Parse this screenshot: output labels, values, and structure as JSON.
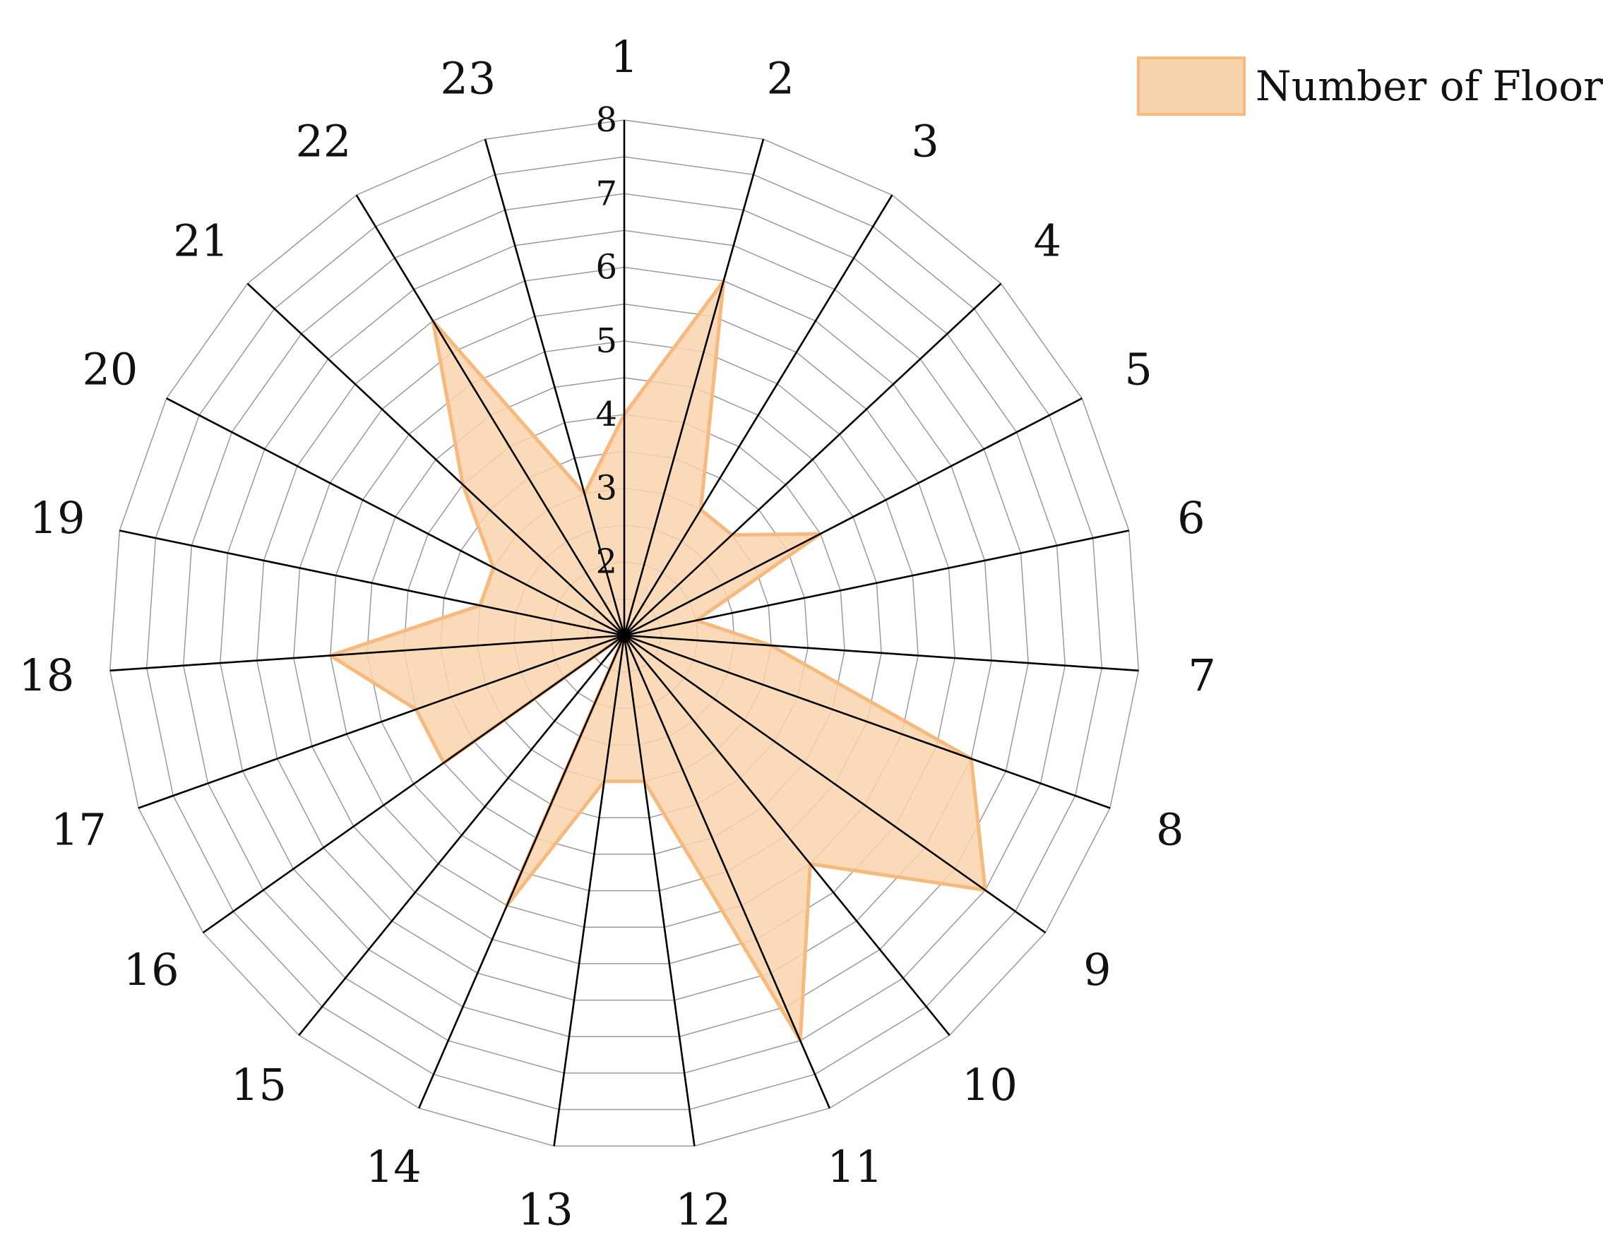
{
  "chart_data": {
    "type": "radar",
    "categories": [
      "1",
      "2",
      "3",
      "4",
      "5",
      "6",
      "7",
      "8",
      "9",
      "10",
      "11",
      "12",
      "13",
      "14",
      "15",
      "16",
      "17",
      "18",
      "19",
      "20",
      "21",
      "22",
      "23"
    ],
    "series": [
      {
        "name": "Number of Floors",
        "values": [
          4,
          6,
          3,
          3,
          4,
          2,
          3,
          6,
          7,
          5,
          7,
          3,
          3,
          5,
          1,
          4,
          4,
          5,
          3,
          3,
          4,
          6,
          3
        ]
      }
    ],
    "rlim": [
      1,
      8
    ],
    "ticks": [
      2,
      3,
      4,
      5,
      6,
      7,
      8
    ],
    "grid": true,
    "legend": "top-right",
    "colors": {
      "fill": "#f9d3ad",
      "stroke": "#f7b97c",
      "spoke": "#000000",
      "grid": "#9a9a9a"
    }
  }
}
